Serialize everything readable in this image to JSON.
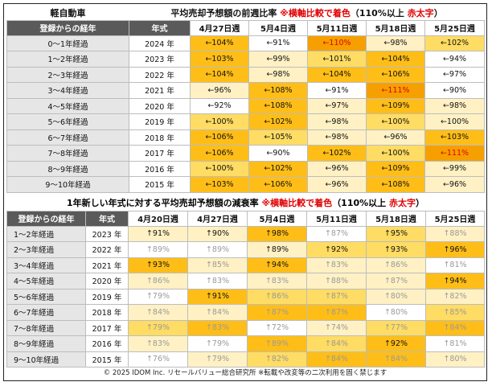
{
  "top": {
    "left_title": "軽自動車",
    "title_main": "平均売却予想額の前週比率 ",
    "title_note": "※横軸比較で着色",
    "title_paren_open": "（110%以上 ",
    "title_bold_red": "赤太字",
    "title_paren_close": "）",
    "headers": [
      "登録からの経年",
      "年式"
    ],
    "weeks": [
      "4月27日週",
      "5月4日週",
      "5月11日週",
      "5月18日週",
      "5月25日週"
    ],
    "rows": [
      {
        "age": "0～1年経過",
        "year": "2024 年",
        "cells": [
          {
            "t": "←104%",
            "c": 3,
            "r": false
          },
          {
            "t": "←91%",
            "c": 0,
            "r": false
          },
          {
            "t": "←110%",
            "c": 4,
            "r": true
          },
          {
            "t": "←98%",
            "c": 1,
            "r": false
          },
          {
            "t": "←102%",
            "c": 2,
            "r": false
          }
        ]
      },
      {
        "age": "1～2年経過",
        "year": "2023 年",
        "cells": [
          {
            "t": "←103%",
            "c": 3,
            "r": false
          },
          {
            "t": "←99%",
            "c": 1,
            "r": false
          },
          {
            "t": "←101%",
            "c": 2,
            "r": false
          },
          {
            "t": "←104%",
            "c": 3,
            "r": false
          },
          {
            "t": "←94%",
            "c": 0,
            "r": false
          }
        ]
      },
      {
        "age": "2～3年経過",
        "year": "2022 年",
        "cells": [
          {
            "t": "←104%",
            "c": 3,
            "r": false
          },
          {
            "t": "←98%",
            "c": 1,
            "r": false
          },
          {
            "t": "←104%",
            "c": 3,
            "r": false
          },
          {
            "t": "←106%",
            "c": 3,
            "r": false
          },
          {
            "t": "←97%",
            "c": 0,
            "r": false
          }
        ]
      },
      {
        "age": "3～4年経過",
        "year": "2021 年",
        "cells": [
          {
            "t": "←96%",
            "c": 1,
            "r": false
          },
          {
            "t": "←108%",
            "c": 3,
            "r": false
          },
          {
            "t": "←91%",
            "c": 0,
            "r": false
          },
          {
            "t": "←111%",
            "c": 4,
            "r": true
          },
          {
            "t": "←90%",
            "c": 0,
            "r": false
          }
        ]
      },
      {
        "age": "4～5年経過",
        "year": "2020 年",
        "cells": [
          {
            "t": "←92%",
            "c": 0,
            "r": false
          },
          {
            "t": "←108%",
            "c": 3,
            "r": false
          },
          {
            "t": "←97%",
            "c": 1,
            "r": false
          },
          {
            "t": "←109%",
            "c": 3,
            "r": false
          },
          {
            "t": "←98%",
            "c": 1,
            "r": false
          }
        ]
      },
      {
        "age": "5～6年経過",
        "year": "2019 年",
        "cells": [
          {
            "t": "←100%",
            "c": 2,
            "r": false
          },
          {
            "t": "←102%",
            "c": 3,
            "r": false
          },
          {
            "t": "←98%",
            "c": 1,
            "r": false
          },
          {
            "t": "←100%",
            "c": 2,
            "r": false
          },
          {
            "t": "←100%",
            "c": 1,
            "r": false
          }
        ]
      },
      {
        "age": "6～7年経過",
        "year": "2018 年",
        "cells": [
          {
            "t": "←106%",
            "c": 3,
            "r": false
          },
          {
            "t": "←105%",
            "c": 2,
            "r": false
          },
          {
            "t": "←98%",
            "c": 1,
            "r": false
          },
          {
            "t": "←96%",
            "c": 1,
            "r": false
          },
          {
            "t": "←103%",
            "c": 3,
            "r": false
          }
        ]
      },
      {
        "age": "7～8年経過",
        "year": "2017 年",
        "cells": [
          {
            "t": "←106%",
            "c": 3,
            "r": false
          },
          {
            "t": "←90%",
            "c": 0,
            "r": false
          },
          {
            "t": "←102%",
            "c": 3,
            "r": false
          },
          {
            "t": "←100%",
            "c": 2,
            "r": false
          },
          {
            "t": "←111%",
            "c": 4,
            "r": true
          }
        ]
      },
      {
        "age": "8～9年経過",
        "year": "2016 年",
        "cells": [
          {
            "t": "←100%",
            "c": 2,
            "r": false
          },
          {
            "t": "←102%",
            "c": 3,
            "r": false
          },
          {
            "t": "←96%",
            "c": 1,
            "r": false
          },
          {
            "t": "←109%",
            "c": 3,
            "r": false
          },
          {
            "t": "←99%",
            "c": 1,
            "r": false
          }
        ]
      },
      {
        "age": "9～10年経過",
        "year": "2015 年",
        "cells": [
          {
            "t": "←103%",
            "c": 3,
            "r": false
          },
          {
            "t": "←106%",
            "c": 3,
            "r": false
          },
          {
            "t": "←96%",
            "c": 1,
            "r": false
          },
          {
            "t": "←108%",
            "c": 3,
            "r": false
          },
          {
            "t": "←96%",
            "c": 1,
            "r": false
          }
        ]
      }
    ]
  },
  "bottom": {
    "title_main": "1年新しい年式に対する平均売却予想額の減衰率 ",
    "title_note": "※横軸比較で着色",
    "title_paren_open": "（110%以上 ",
    "title_bold_red": "赤太字",
    "title_paren_close": "）",
    "headers": [
      "登録からの経年",
      "年式"
    ],
    "weeks": [
      "4月20日週",
      "4月27日週",
      "5月4日週",
      "5月11日週",
      "5月18日週",
      "5月25日週"
    ],
    "rows": [
      {
        "age": "1～2年経過",
        "year": "2023 年",
        "cells": [
          {
            "t": "↑91%",
            "c": 1,
            "f": false
          },
          {
            "t": "↑90%",
            "c": 1,
            "f": false
          },
          {
            "t": "↑98%",
            "c": 3,
            "f": false
          },
          {
            "t": "↑87%",
            "c": 0,
            "f": true
          },
          {
            "t": "↑95%",
            "c": 2,
            "f": false
          },
          {
            "t": "↑88%",
            "c": 1,
            "f": true
          }
        ]
      },
      {
        "age": "2～3年経過",
        "year": "2022 年",
        "cells": [
          {
            "t": "↑89%",
            "c": 0,
            "f": true
          },
          {
            "t": "↑89%",
            "c": 0,
            "f": true
          },
          {
            "t": "↑89%",
            "c": 1,
            "f": false
          },
          {
            "t": "↑92%",
            "c": 2,
            "f": false
          },
          {
            "t": "↑93%",
            "c": 2,
            "f": false
          },
          {
            "t": "↑96%",
            "c": 3,
            "f": false
          }
        ]
      },
      {
        "age": "3～4年経過",
        "year": "2021 年",
        "cells": [
          {
            "t": "↑93%",
            "c": 3,
            "f": false
          },
          {
            "t": "↑85%",
            "c": 1,
            "f": true
          },
          {
            "t": "↑94%",
            "c": 3,
            "f": false
          },
          {
            "t": "↑83%",
            "c": 1,
            "f": true
          },
          {
            "t": "↑86%",
            "c": 1,
            "f": true
          },
          {
            "t": "↑81%",
            "c": 0,
            "f": true
          }
        ]
      },
      {
        "age": "4～5年経過",
        "year": "2020 年",
        "cells": [
          {
            "t": "↑86%",
            "c": 1,
            "f": true
          },
          {
            "t": "↑83%",
            "c": 0,
            "f": true
          },
          {
            "t": "↑83%",
            "c": 1,
            "f": true
          },
          {
            "t": "↑88%",
            "c": 1,
            "f": true
          },
          {
            "t": "↑87%",
            "c": 1,
            "f": true
          },
          {
            "t": "↑94%",
            "c": 3,
            "f": false
          }
        ]
      },
      {
        "age": "5～6年経過",
        "year": "2019 年",
        "cells": [
          {
            "t": "↑79%",
            "c": 0,
            "f": true
          },
          {
            "t": "↑91%",
            "c": 3,
            "f": false
          },
          {
            "t": "↑86%",
            "c": 2,
            "f": true
          },
          {
            "t": "↑87%",
            "c": 2,
            "f": true
          },
          {
            "t": "↑80%",
            "c": 1,
            "f": true
          },
          {
            "t": "↑82%",
            "c": 1,
            "f": true
          }
        ]
      },
      {
        "age": "6～7年経過",
        "year": "2018 年",
        "cells": [
          {
            "t": "↑84%",
            "c": 1,
            "f": true
          },
          {
            "t": "↑84%",
            "c": 1,
            "f": true
          },
          {
            "t": "↑87%",
            "c": 3,
            "f": true
          },
          {
            "t": "↑87%",
            "c": 3,
            "f": true
          },
          {
            "t": "↑80%",
            "c": 0,
            "f": true
          },
          {
            "t": "↑85%",
            "c": 2,
            "f": true
          }
        ]
      },
      {
        "age": "7～8年経過",
        "year": "2017 年",
        "cells": [
          {
            "t": "↑79%",
            "c": 2,
            "f": true
          },
          {
            "t": "↑83%",
            "c": 3,
            "f": true
          },
          {
            "t": "↑72%",
            "c": 0,
            "f": true
          },
          {
            "t": "↑74%",
            "c": 1,
            "f": true
          },
          {
            "t": "↑77%",
            "c": 2,
            "f": true
          },
          {
            "t": "↑84%",
            "c": 3,
            "f": true
          }
        ]
      },
      {
        "age": "8～9年経過",
        "year": "2016 年",
        "cells": [
          {
            "t": "↑83%",
            "c": 1,
            "f": true
          },
          {
            "t": "↑79%",
            "c": 0,
            "f": true
          },
          {
            "t": "↑89%",
            "c": 3,
            "f": true
          },
          {
            "t": "↑84%",
            "c": 2,
            "f": true
          },
          {
            "t": "↑92%",
            "c": 3,
            "f": false
          },
          {
            "t": "↑81%",
            "c": 0,
            "f": true
          }
        ]
      },
      {
        "age": "9～10年経過",
        "year": "2015 年",
        "cells": [
          {
            "t": "↑76%",
            "c": 0,
            "f": true
          },
          {
            "t": "↑79%",
            "c": 1,
            "f": true
          },
          {
            "t": "↑82%",
            "c": 2,
            "f": true
          },
          {
            "t": "↑84%",
            "c": 3,
            "f": true
          },
          {
            "t": "↑84%",
            "c": 3,
            "f": true
          },
          {
            "t": "↑80%",
            "c": 1,
            "f": true
          }
        ]
      }
    ]
  },
  "footer": "© 2025 IDOM Inc. リセールバリュー総合研究所 ※転載や改変等の二次利用を固く禁じます"
}
